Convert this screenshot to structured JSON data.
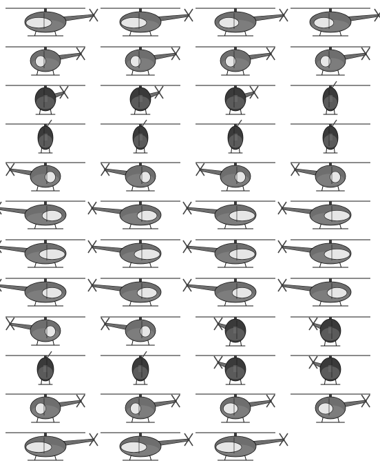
{
  "sprite_sheet": {
    "subject": "helicopter",
    "columns": 4,
    "rows": 12,
    "frame_count": 47,
    "background": "#ffffff",
    "colors": {
      "body_dark": "#3a3a3a",
      "body_mid": "#6e6e6e",
      "body_light": "#9a9a9a",
      "canopy": "#e6e6e6",
      "outline": "#111111",
      "rotor": "#444444"
    },
    "frames": [
      {
        "index": 1,
        "view": "side-left",
        "canopy": "large"
      },
      {
        "index": 2,
        "view": "side-left",
        "canopy": "large"
      },
      {
        "index": 3,
        "view": "side-left",
        "canopy": "medium"
      },
      {
        "index": 4,
        "view": "side-left",
        "canopy": "medium"
      },
      {
        "index": 5,
        "view": "quarter-left",
        "canopy": "small"
      },
      {
        "index": 6,
        "view": "quarter-left",
        "canopy": "small"
      },
      {
        "index": 7,
        "view": "quarter-left",
        "canopy": "small"
      },
      {
        "index": 8,
        "view": "quarter-left",
        "canopy": "small"
      },
      {
        "index": 9,
        "view": "rear-quarter",
        "canopy": "none"
      },
      {
        "index": 10,
        "view": "rear-quarter",
        "canopy": "none"
      },
      {
        "index": 11,
        "view": "rear-quarter",
        "canopy": "none"
      },
      {
        "index": 12,
        "view": "rear",
        "canopy": "none"
      },
      {
        "index": 13,
        "view": "rear",
        "canopy": "none"
      },
      {
        "index": 14,
        "view": "rear",
        "canopy": "none"
      },
      {
        "index": 15,
        "view": "rear",
        "canopy": "none"
      },
      {
        "index": 16,
        "view": "rear",
        "canopy": "none"
      },
      {
        "index": 17,
        "view": "quarter-right",
        "canopy": "small"
      },
      {
        "index": 18,
        "view": "quarter-right",
        "canopy": "small"
      },
      {
        "index": 19,
        "view": "quarter-right",
        "canopy": "small"
      },
      {
        "index": 20,
        "view": "quarter-right",
        "canopy": "small"
      },
      {
        "index": 21,
        "view": "side-right",
        "canopy": "medium"
      },
      {
        "index": 22,
        "view": "side-right",
        "canopy": "medium"
      },
      {
        "index": 23,
        "view": "side-right",
        "canopy": "large"
      },
      {
        "index": 24,
        "view": "side-right",
        "canopy": "large"
      },
      {
        "index": 25,
        "view": "side-right",
        "canopy": "large"
      },
      {
        "index": 26,
        "view": "side-right",
        "canopy": "large"
      },
      {
        "index": 27,
        "view": "side-right",
        "canopy": "large"
      },
      {
        "index": 28,
        "view": "side-right",
        "canopy": "large"
      },
      {
        "index": 29,
        "view": "side-right",
        "canopy": "medium"
      },
      {
        "index": 30,
        "view": "side-right",
        "canopy": "medium"
      },
      {
        "index": 31,
        "view": "side-right",
        "canopy": "medium"
      },
      {
        "index": 32,
        "view": "side-right",
        "canopy": "medium"
      },
      {
        "index": 33,
        "view": "quarter-right",
        "canopy": "small"
      },
      {
        "index": 34,
        "view": "quarter-right",
        "canopy": "small"
      },
      {
        "index": 35,
        "view": "front-quarter",
        "canopy": "none"
      },
      {
        "index": 36,
        "view": "front-quarter",
        "canopy": "none"
      },
      {
        "index": 37,
        "view": "front",
        "canopy": "none"
      },
      {
        "index": 38,
        "view": "front",
        "canopy": "none"
      },
      {
        "index": 39,
        "view": "front-quarter",
        "canopy": "none"
      },
      {
        "index": 40,
        "view": "front-quarter",
        "canopy": "none"
      },
      {
        "index": 41,
        "view": "quarter-left",
        "canopy": "small"
      },
      {
        "index": 42,
        "view": "quarter-left",
        "canopy": "small"
      },
      {
        "index": 43,
        "view": "quarter-left",
        "canopy": "medium"
      },
      {
        "index": 44,
        "view": "quarter-left",
        "canopy": "medium"
      },
      {
        "index": 45,
        "view": "side-left",
        "canopy": "large"
      },
      {
        "index": 46,
        "view": "side-left",
        "canopy": "large"
      },
      {
        "index": 47,
        "view": "side-left",
        "canopy": "large"
      }
    ]
  }
}
